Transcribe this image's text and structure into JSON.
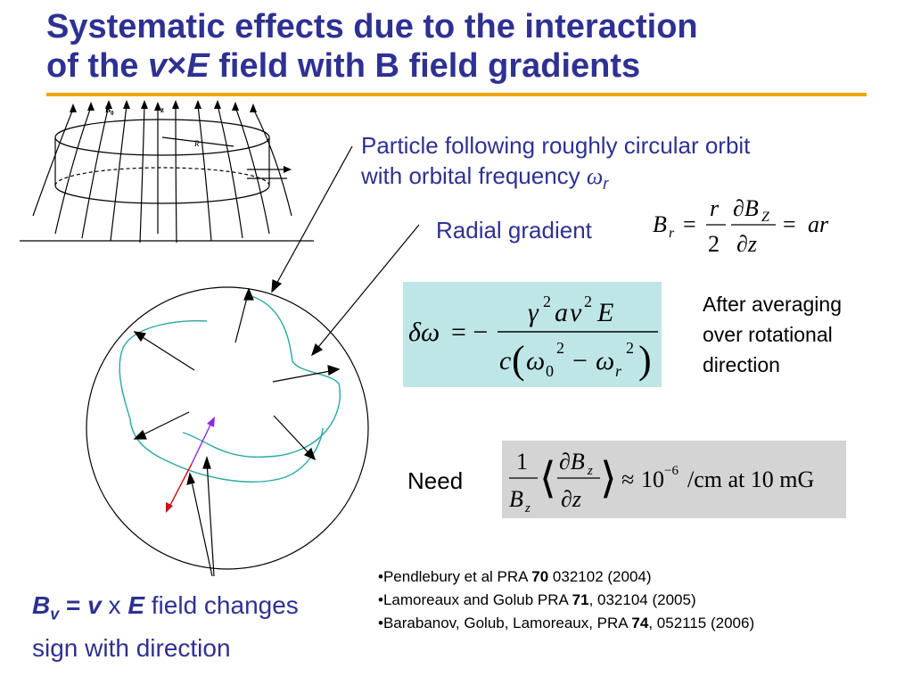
{
  "title": {
    "line1": "Systematic effects due to the interaction",
    "line2_pre": "of the ",
    "line2_v": "v",
    "line2_times": "×",
    "line2_E": "E",
    "line2_post": " field with B field gradients"
  },
  "orbit_annotation": {
    "line1": "Particle following roughly circular orbit",
    "line2": "with orbital frequency ",
    "omega": "ω",
    "sub": "r"
  },
  "radial_gradient": {
    "label": "Radial gradient",
    "eq": {
      "lhs_B": "B",
      "lhs_sub": "r",
      "eq1": "=",
      "frac_num": "r",
      "partial_num": "∂B",
      "partial_num_sub": "Z",
      "frac_den": "2",
      "partial_den": "∂z",
      "eq2": "=",
      "rhs": "ar"
    }
  },
  "delta_omega": {
    "lhs": "δω",
    "eq": "= −",
    "num_gamma": "γ",
    "num_gamma_exp": "2",
    "num_a": "a",
    "num_v": "v",
    "num_v_exp": "2",
    "num_E": "E",
    "den_c": "c",
    "den_open": "(",
    "den_omega0": "ω",
    "den_omega0_sub": "0",
    "den_omega0_exp": "2",
    "den_minus": "−",
    "den_omegar": "ω",
    "den_omegar_sub": "r",
    "den_omegar_exp": "2",
    "den_close": ")"
  },
  "averaging_note": {
    "line1": "After averaging",
    "line2": "over rotational",
    "line3": "direction"
  },
  "need": {
    "label": "Need",
    "eq": {
      "one": "1",
      "B": "B",
      "B_sub": "z",
      "lang": "⟨",
      "partial_B": "∂B",
      "partial_B_sub": "z",
      "partial_z": "∂z",
      "rang": "⟩",
      "approx": "≈",
      "ten": "10",
      "exp": "−6",
      "unit": "/cm at 10 mG"
    }
  },
  "bv_caption": {
    "B": "B",
    "B_sub": "v",
    "eq": " = ",
    "v": "v",
    "x": " x ",
    "E": "E",
    "post": " field changes",
    "line2": "sign with direction"
  },
  "references": [
    {
      "bullet": "•",
      "pre": "Pendlebury et al PRA ",
      "vol": "70",
      "post": " 032102 (2004)"
    },
    {
      "bullet": "•",
      "pre": "Lamoreaux and Golub PRA ",
      "vol": "71",
      "post": ", 032104 (2005)"
    },
    {
      "bullet": "•",
      "pre": "Barabanov, Golub, Lamoreaux, PRA ",
      "vol": "74",
      "post": ", 052115 (2006)"
    }
  ],
  "diagram_labels": {
    "b0": "B",
    "b0_sub": "0",
    "z": "z",
    "r": "R"
  },
  "colors": {
    "title": "#2e3192",
    "title_rule": "#f0a500",
    "orbit": "#2aa6a6",
    "box1": "#bfe6e6",
    "box2": "#d4d4d4",
    "arrow_red": "#cc1111",
    "arrow_purple": "#8a2be2"
  }
}
